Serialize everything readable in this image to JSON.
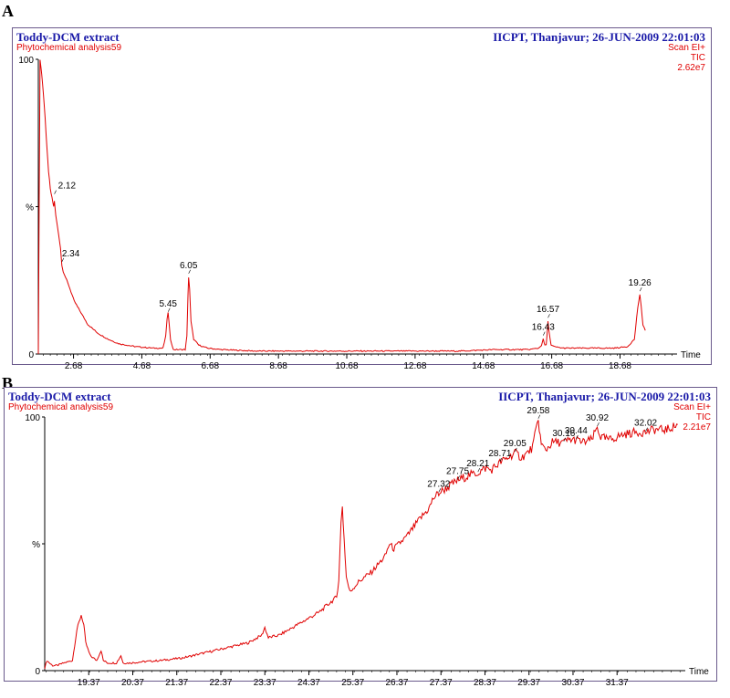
{
  "chart_data": [
    {
      "panel": "A",
      "type": "line",
      "title": "Toddy-DCM extract",
      "subtitle": "Phytochemical analysis59",
      "header_right": "IICPT, Thanjavur; 26-JUN-2009 22:01:03",
      "scan_lines": [
        "Scan EI+",
        "TIC",
        "2.62e7"
      ],
      "xlabel": "Time",
      "ylabel": "%",
      "y_ticks": [
        "100",
        "%",
        "0"
      ],
      "xlim": [
        1.65,
        20.35
      ],
      "ylim": [
        0,
        100
      ],
      "x_ticks": [
        2.68,
        4.68,
        6.68,
        8.68,
        10.68,
        12.68,
        14.68,
        16.68,
        18.68
      ],
      "x_tick_labels": [
        "2.68",
        "4.68",
        "6.68",
        "8.68",
        "10.68",
        "12.68",
        "14.68",
        "16.68",
        "18.68"
      ],
      "series": [
        {
          "color": "#e00000",
          "x": [
            1.65,
            1.7,
            1.75,
            1.8,
            1.85,
            1.9,
            1.95,
            2.0,
            2.05,
            2.1,
            2.12,
            2.16,
            2.2,
            2.25,
            2.3,
            2.34,
            2.38,
            2.45,
            2.55,
            2.7,
            2.9,
            3.1,
            3.4,
            3.7,
            4.0,
            4.5,
            5.0,
            5.3,
            5.38,
            5.42,
            5.45,
            5.48,
            5.52,
            5.6,
            5.8,
            5.95,
            6.0,
            6.03,
            6.05,
            6.08,
            6.12,
            6.2,
            6.35,
            6.6,
            7.0,
            8.0,
            9.0,
            10.0,
            11.0,
            12.0,
            13.0,
            14.0,
            15.0,
            16.0,
            16.3,
            16.38,
            16.43,
            16.48,
            16.52,
            16.57,
            16.6,
            16.66,
            16.75,
            17.0,
            17.5,
            18.0,
            18.5,
            18.9,
            19.1,
            19.2,
            19.26,
            19.3,
            19.35,
            19.42
          ],
          "y": [
            0,
            100,
            95,
            88,
            80,
            70,
            62,
            56,
            53,
            50,
            52,
            47,
            44,
            40,
            36,
            30,
            28,
            26,
            23,
            18,
            14,
            10,
            7,
            5,
            3.5,
            2.5,
            2,
            2,
            6,
            12,
            14,
            10,
            5,
            1.5,
            1.5,
            1.5,
            6,
            20,
            26,
            22,
            11,
            5,
            3,
            2,
            1.5,
            1,
            1,
            1,
            1,
            1,
            1,
            1,
            1.5,
            1.5,
            2,
            3,
            5,
            3,
            3,
            11,
            8,
            3,
            2.5,
            2,
            2,
            2,
            2,
            2.5,
            5,
            16,
            20,
            16,
            10,
            8
          ]
        }
      ],
      "peak_labels": [
        {
          "label": "2.12",
          "x": 2.12,
          "y": 54
        },
        {
          "label": "2.34",
          "x": 2.34,
          "y": 31
        },
        {
          "label": "5.45",
          "x": 5.45,
          "y": 14
        },
        {
          "label": "6.05",
          "x": 6.05,
          "y": 27
        },
        {
          "label": "16.43",
          "x": 16.43,
          "y": 6
        },
        {
          "label": "16.57",
          "x": 16.57,
          "y": 12
        },
        {
          "label": "19.26",
          "x": 19.26,
          "y": 21
        }
      ]
    },
    {
      "panel": "B",
      "type": "line",
      "title": "Toddy-DCM extract",
      "subtitle": "Phytochemical analysis59",
      "header_right": "IICPT, Thanjavur; 26-JUN-2009 22:01:03",
      "scan_lines": [
        "Scan EI+",
        "TIC",
        "2.21e7"
      ],
      "xlabel": "Time",
      "ylabel": "%",
      "y_ticks": [
        "100",
        "%",
        "0"
      ],
      "xlim": [
        18.37,
        32.92
      ],
      "ylim": [
        0,
        100
      ],
      "x_ticks": [
        19.37,
        20.37,
        21.37,
        22.37,
        23.37,
        24.37,
        25.37,
        26.37,
        27.37,
        28.37,
        29.37,
        30.37,
        31.37
      ],
      "x_tick_labels": [
        "19.37",
        "20.37",
        "21.37",
        "22.37",
        "23.37",
        "24.37",
        "25.37",
        "26.37",
        "27.37",
        "28.37",
        "29.37",
        "30.37",
        "31.37"
      ],
      "series": [
        {
          "color": "#e00000",
          "x": [
            18.37,
            18.42,
            18.48,
            18.55,
            18.65,
            18.8,
            19.0,
            19.1,
            19.2,
            19.26,
            19.3,
            19.4,
            19.55,
            19.65,
            19.7,
            19.8,
            20.0,
            20.1,
            20.15,
            20.3,
            20.6,
            21.0,
            21.5,
            22.0,
            22.5,
            23.0,
            23.3,
            23.37,
            23.45,
            23.7,
            24.0,
            24.3,
            24.6,
            24.8,
            25.0,
            25.05,
            25.1,
            25.13,
            25.17,
            25.22,
            25.3,
            25.5,
            25.8,
            26.1,
            26.2,
            26.3,
            26.6,
            26.9,
            27.1,
            27.2,
            27.32,
            27.5,
            27.75,
            28.0,
            28.21,
            28.4,
            28.5,
            28.71,
            28.9,
            29.05,
            29.2,
            29.35,
            29.45,
            29.58,
            29.65,
            29.75,
            29.9,
            30.16,
            30.3,
            30.44,
            30.6,
            30.8,
            30.92,
            31.0,
            31.2,
            31.5,
            31.8,
            32.02,
            32.2,
            32.5,
            32.75
          ],
          "y": [
            1,
            4,
            3,
            2,
            2,
            3,
            4,
            16,
            22,
            18,
            11,
            6,
            4,
            8,
            4,
            3,
            3,
            6,
            3,
            3,
            3.5,
            4,
            5,
            7,
            9,
            11,
            14,
            17,
            13,
            14,
            17,
            20,
            23,
            26,
            29,
            36,
            58,
            65,
            52,
            37,
            31,
            35,
            39,
            45,
            50,
            48,
            53,
            60,
            64,
            68,
            70,
            72,
            75,
            77,
            78,
            80,
            79,
            82,
            84,
            86,
            84,
            86,
            88,
            99,
            89,
            87,
            90,
            90,
            91,
            91,
            90,
            91,
            96,
            92,
            91,
            93,
            94,
            94,
            95,
            95,
            97
          ]
        }
      ],
      "peak_labels": [
        {
          "label": "27.32",
          "x": 27.32,
          "y": 70
        },
        {
          "label": "27.75",
          "x": 27.75,
          "y": 75
        },
        {
          "label": "28.21",
          "x": 28.21,
          "y": 78
        },
        {
          "label": "28.71",
          "x": 28.71,
          "y": 82
        },
        {
          "label": "29.05",
          "x": 29.05,
          "y": 86
        },
        {
          "label": "29.58",
          "x": 29.58,
          "y": 99
        },
        {
          "label": "30.16",
          "x": 30.16,
          "y": 90
        },
        {
          "label": "30.44",
          "x": 30.44,
          "y": 91
        },
        {
          "label": "30.92",
          "x": 30.92,
          "y": 96
        },
        {
          "label": "32.02",
          "x": 32.02,
          "y": 94
        }
      ]
    }
  ]
}
